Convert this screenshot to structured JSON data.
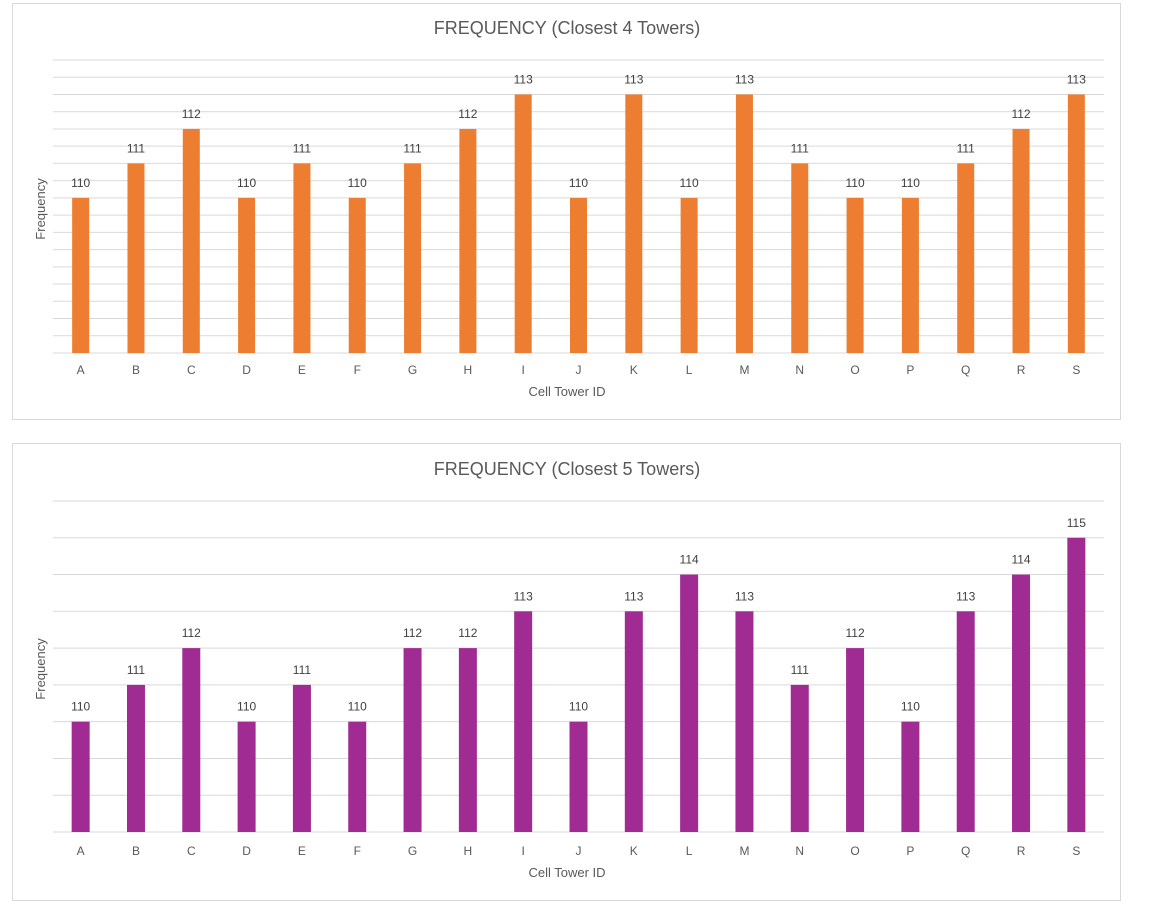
{
  "chart_data": [
    {
      "type": "bar",
      "title": "FREQUENCY (Closest 4 Towers)",
      "xlabel": "Cell Tower ID",
      "ylabel": "Frequency",
      "categories": [
        "A",
        "B",
        "C",
        "D",
        "E",
        "F",
        "G",
        "H",
        "I",
        "J",
        "K",
        "L",
        "M",
        "N",
        "O",
        "P",
        "Q",
        "R",
        "S"
      ],
      "series": [
        {
          "values": [
            110,
            111,
            112,
            110,
            111,
            110,
            111,
            112,
            113,
            110,
            113,
            110,
            113,
            111,
            110,
            110,
            111,
            112,
            113
          ]
        }
      ],
      "ylim": [
        105.5,
        114
      ],
      "grid": true,
      "bar_color": "#ED7D31"
    },
    {
      "type": "bar",
      "title": "FREQUENCY (Closest 5 Towers)",
      "xlabel": "Cell Tower ID",
      "ylabel": "Frequency",
      "categories": [
        "A",
        "B",
        "C",
        "D",
        "E",
        "F",
        "G",
        "H",
        "I",
        "J",
        "K",
        "L",
        "M",
        "N",
        "O",
        "P",
        "Q",
        "R",
        "S"
      ],
      "series": [
        {
          "values": [
            110,
            111,
            112,
            110,
            111,
            110,
            112,
            112,
            113,
            110,
            113,
            114,
            113,
            111,
            112,
            110,
            113,
            114,
            115
          ]
        }
      ],
      "ylim": [
        107,
        116
      ],
      "grid": true,
      "bar_color": "#A02B93"
    }
  ]
}
